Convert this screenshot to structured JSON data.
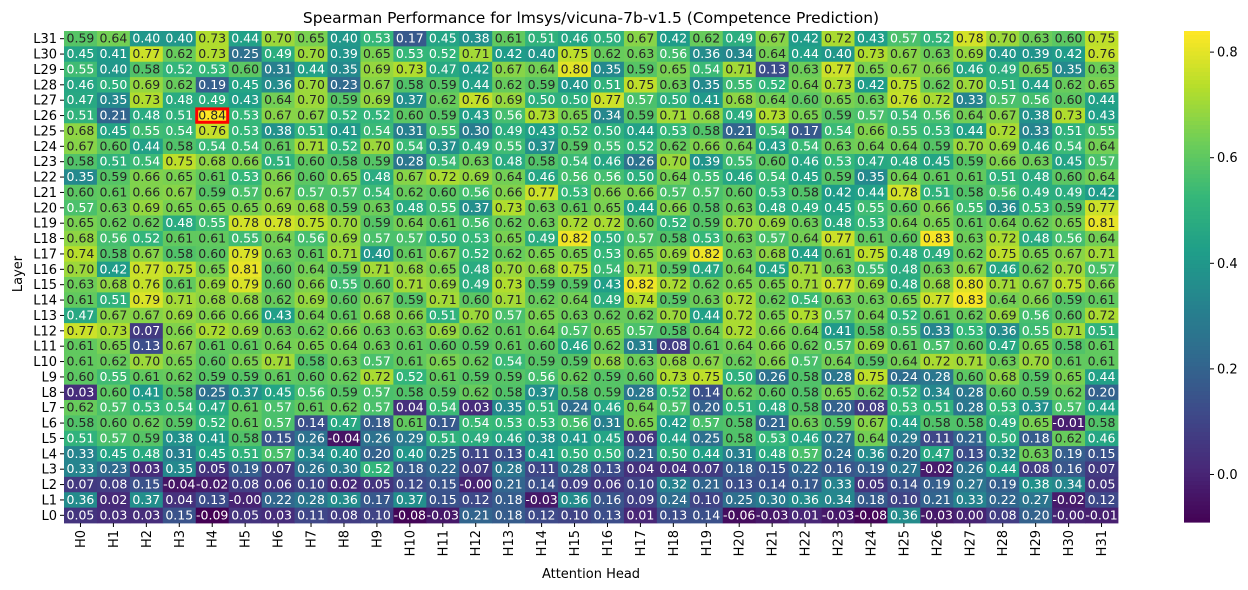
{
  "chart_data": {
    "type": "heatmap",
    "title": "Spearman Performance for lmsys/vicuna-7b-v1.5 (Competence Prediction)",
    "xlabel": "Attention Head",
    "ylabel": "Layer",
    "x_labels": [
      "H0",
      "H1",
      "H2",
      "H3",
      "H4",
      "H5",
      "H6",
      "H7",
      "H8",
      "H9",
      "H10",
      "H11",
      "H12",
      "H13",
      "H14",
      "H15",
      "H16",
      "H17",
      "H18",
      "H19",
      "H20",
      "H21",
      "H22",
      "H23",
      "H24",
      "H25",
      "H26",
      "H27",
      "H28",
      "H29",
      "H30",
      "H31"
    ],
    "y_labels": [
      "L31",
      "L30",
      "L29",
      "L28",
      "L27",
      "L26",
      "L25",
      "L24",
      "L23",
      "L22",
      "L21",
      "L20",
      "L19",
      "L18",
      "L17",
      "L16",
      "L15",
      "L14",
      "L13",
      "L12",
      "L11",
      "L10",
      "L9",
      "L8",
      "L7",
      "L6",
      "L5",
      "L4",
      "L3",
      "L2",
      "L1",
      "L0"
    ],
    "values": [
      [
        "0.59",
        "0.64",
        "0.40",
        "0.40",
        "0.73",
        "0.44",
        "0.70",
        "0.65",
        "0.40",
        "0.53",
        "0.17",
        "0.45",
        "0.38",
        "0.61",
        "0.51",
        "0.46",
        "0.50",
        "0.67",
        "0.42",
        "0.62",
        "0.49",
        "0.67",
        "0.42",
        "0.72",
        "0.43",
        "0.57",
        "0.52",
        "0.78",
        "0.70",
        "0.63",
        "0.60",
        "0.75"
      ],
      [
        "0.45",
        "0.41",
        "0.77",
        "0.62",
        "0.73",
        "0.25",
        "0.49",
        "0.70",
        "0.39",
        "0.65",
        "0.53",
        "0.52",
        "0.71",
        "0.42",
        "0.40",
        "0.75",
        "0.62",
        "0.63",
        "0.56",
        "0.36",
        "0.34",
        "0.64",
        "0.44",
        "0.40",
        "0.73",
        "0.67",
        "0.63",
        "0.69",
        "0.40",
        "0.39",
        "0.42",
        "0.76"
      ],
      [
        "0.55",
        "0.40",
        "0.58",
        "0.52",
        "0.53",
        "0.60",
        "0.31",
        "0.44",
        "0.35",
        "0.69",
        "0.73",
        "0.47",
        "0.42",
        "0.67",
        "0.64",
        "0.80",
        "0.35",
        "0.59",
        "0.65",
        "0.54",
        "0.71",
        "0.13",
        "0.63",
        "0.77",
        "0.65",
        "0.67",
        "0.66",
        "0.46",
        "0.49",
        "0.65",
        "0.35",
        "0.63"
      ],
      [
        "0.46",
        "0.50",
        "0.69",
        "0.62",
        "0.19",
        "0.45",
        "0.36",
        "0.70",
        "0.23",
        "0.67",
        "0.58",
        "0.59",
        "0.44",
        "0.62",
        "0.59",
        "0.40",
        "0.51",
        "0.75",
        "0.63",
        "0.35",
        "0.55",
        "0.52",
        "0.64",
        "0.73",
        "0.42",
        "0.75",
        "0.62",
        "0.70",
        "0.51",
        "0.44",
        "0.62",
        "0.65"
      ],
      [
        "0.47",
        "0.35",
        "0.73",
        "0.48",
        "0.49",
        "0.43",
        "0.64",
        "0.70",
        "0.59",
        "0.69",
        "0.37",
        "0.62",
        "0.76",
        "0.69",
        "0.50",
        "0.50",
        "0.77",
        "0.57",
        "0.50",
        "0.41",
        "0.68",
        "0.64",
        "0.60",
        "0.65",
        "0.63",
        "0.76",
        "0.72",
        "0.33",
        "0.57",
        "0.56",
        "0.60",
        "0.44"
      ],
      [
        "0.51",
        "0.21",
        "0.48",
        "0.51",
        "0.84",
        "0.53",
        "0.67",
        "0.67",
        "0.52",
        "0.52",
        "0.60",
        "0.59",
        "0.43",
        "0.56",
        "0.73",
        "0.65",
        "0.34",
        "0.59",
        "0.71",
        "0.68",
        "0.49",
        "0.73",
        "0.65",
        "0.59",
        "0.57",
        "0.54",
        "0.56",
        "0.64",
        "0.67",
        "0.38",
        "0.73",
        "0.43"
      ],
      [
        "0.68",
        "0.45",
        "0.55",
        "0.54",
        "0.76",
        "0.53",
        "0.38",
        "0.51",
        "0.41",
        "0.54",
        "0.31",
        "0.55",
        "0.30",
        "0.49",
        "0.43",
        "0.52",
        "0.50",
        "0.44",
        "0.53",
        "0.58",
        "0.21",
        "0.54",
        "0.17",
        "0.54",
        "0.66",
        "0.55",
        "0.53",
        "0.44",
        "0.72",
        "0.33",
        "0.51",
        "0.55"
      ],
      [
        "0.67",
        "0.60",
        "0.44",
        "0.58",
        "0.54",
        "0.54",
        "0.61",
        "0.71",
        "0.52",
        "0.70",
        "0.54",
        "0.37",
        "0.49",
        "0.55",
        "0.37",
        "0.59",
        "0.55",
        "0.52",
        "0.62",
        "0.66",
        "0.64",
        "0.43",
        "0.54",
        "0.63",
        "0.64",
        "0.64",
        "0.59",
        "0.70",
        "0.69",
        "0.46",
        "0.54",
        "0.64"
      ],
      [
        "0.58",
        "0.51",
        "0.54",
        "0.75",
        "0.68",
        "0.66",
        "0.51",
        "0.60",
        "0.58",
        "0.59",
        "0.28",
        "0.54",
        "0.63",
        "0.48",
        "0.58",
        "0.54",
        "0.46",
        "0.26",
        "0.70",
        "0.39",
        "0.55",
        "0.60",
        "0.46",
        "0.53",
        "0.47",
        "0.48",
        "0.45",
        "0.59",
        "0.66",
        "0.63",
        "0.45",
        "0.57"
      ],
      [
        "0.35",
        "0.59",
        "0.66",
        "0.65",
        "0.61",
        "0.53",
        "0.66",
        "0.60",
        "0.65",
        "0.48",
        "0.67",
        "0.72",
        "0.69",
        "0.64",
        "0.46",
        "0.56",
        "0.56",
        "0.50",
        "0.64",
        "0.55",
        "0.46",
        "0.54",
        "0.45",
        "0.59",
        "0.35",
        "0.64",
        "0.61",
        "0.61",
        "0.51",
        "0.48",
        "0.60",
        "0.64"
      ],
      [
        "0.60",
        "0.61",
        "0.66",
        "0.67",
        "0.59",
        "0.57",
        "0.67",
        "0.57",
        "0.57",
        "0.54",
        "0.62",
        "0.60",
        "0.56",
        "0.66",
        "0.77",
        "0.53",
        "0.66",
        "0.66",
        "0.57",
        "0.57",
        "0.60",
        "0.53",
        "0.58",
        "0.42",
        "0.44",
        "0.78",
        "0.51",
        "0.58",
        "0.56",
        "0.49",
        "0.49",
        "0.42"
      ],
      [
        "0.57",
        "0.63",
        "0.69",
        "0.65",
        "0.65",
        "0.65",
        "0.69",
        "0.68",
        "0.59",
        "0.63",
        "0.48",
        "0.55",
        "0.37",
        "0.73",
        "0.63",
        "0.61",
        "0.65",
        "0.44",
        "0.66",
        "0.58",
        "0.63",
        "0.48",
        "0.49",
        "0.45",
        "0.55",
        "0.60",
        "0.66",
        "0.55",
        "0.36",
        "0.53",
        "0.59",
        "0.77"
      ],
      [
        "0.65",
        "0.62",
        "0.62",
        "0.48",
        "0.55",
        "0.78",
        "0.78",
        "0.75",
        "0.70",
        "0.59",
        "0.64",
        "0.61",
        "0.56",
        "0.62",
        "0.63",
        "0.72",
        "0.72",
        "0.60",
        "0.52",
        "0.59",
        "0.70",
        "0.69",
        "0.63",
        "0.48",
        "0.53",
        "0.64",
        "0.65",
        "0.61",
        "0.64",
        "0.62",
        "0.65",
        "0.81"
      ],
      [
        "0.68",
        "0.56",
        "0.52",
        "0.61",
        "0.61",
        "0.55",
        "0.64",
        "0.56",
        "0.69",
        "0.57",
        "0.57",
        "0.50",
        "0.53",
        "0.65",
        "0.49",
        "0.82",
        "0.50",
        "0.57",
        "0.58",
        "0.53",
        "0.63",
        "0.57",
        "0.64",
        "0.77",
        "0.61",
        "0.60",
        "0.83",
        "0.63",
        "0.72",
        "0.48",
        "0.56",
        "0.64"
      ],
      [
        "0.74",
        "0.58",
        "0.67",
        "0.58",
        "0.60",
        "0.79",
        "0.63",
        "0.61",
        "0.71",
        "0.40",
        "0.61",
        "0.67",
        "0.52",
        "0.62",
        "0.65",
        "0.65",
        "0.53",
        "0.65",
        "0.69",
        "0.82",
        "0.63",
        "0.68",
        "0.44",
        "0.61",
        "0.75",
        "0.48",
        "0.49",
        "0.62",
        "0.75",
        "0.65",
        "0.67",
        "0.71"
      ],
      [
        "0.70",
        "0.42",
        "0.77",
        "0.75",
        "0.65",
        "0.81",
        "0.60",
        "0.64",
        "0.59",
        "0.71",
        "0.68",
        "0.65",
        "0.48",
        "0.70",
        "0.68",
        "0.75",
        "0.54",
        "0.71",
        "0.59",
        "0.47",
        "0.64",
        "0.45",
        "0.71",
        "0.63",
        "0.55",
        "0.48",
        "0.63",
        "0.67",
        "0.46",
        "0.62",
        "0.70",
        "0.57"
      ],
      [
        "0.63",
        "0.68",
        "0.76",
        "0.61",
        "0.69",
        "0.79",
        "0.60",
        "0.66",
        "0.55",
        "0.60",
        "0.71",
        "0.69",
        "0.49",
        "0.73",
        "0.59",
        "0.59",
        "0.43",
        "0.82",
        "0.72",
        "0.62",
        "0.65",
        "0.65",
        "0.71",
        "0.77",
        "0.69",
        "0.48",
        "0.68",
        "0.80",
        "0.71",
        "0.67",
        "0.75",
        "0.66"
      ],
      [
        "0.61",
        "0.51",
        "0.79",
        "0.71",
        "0.68",
        "0.68",
        "0.62",
        "0.69",
        "0.60",
        "0.67",
        "0.59",
        "0.71",
        "0.60",
        "0.71",
        "0.62",
        "0.64",
        "0.49",
        "0.74",
        "0.59",
        "0.63",
        "0.72",
        "0.62",
        "0.54",
        "0.63",
        "0.63",
        "0.65",
        "0.77",
        "0.83",
        "0.64",
        "0.66",
        "0.59",
        "0.61"
      ],
      [
        "0.47",
        "0.67",
        "0.67",
        "0.69",
        "0.66",
        "0.66",
        "0.43",
        "0.64",
        "0.61",
        "0.68",
        "0.66",
        "0.51",
        "0.70",
        "0.57",
        "0.65",
        "0.63",
        "0.62",
        "0.62",
        "0.70",
        "0.44",
        "0.72",
        "0.65",
        "0.73",
        "0.57",
        "0.64",
        "0.52",
        "0.61",
        "0.62",
        "0.69",
        "0.56",
        "0.60",
        "0.72"
      ],
      [
        "0.77",
        "0.73",
        "0.07",
        "0.66",
        "0.72",
        "0.69",
        "0.63",
        "0.62",
        "0.66",
        "0.63",
        "0.63",
        "0.69",
        "0.62",
        "0.61",
        "0.64",
        "0.57",
        "0.65",
        "0.57",
        "0.58",
        "0.64",
        "0.72",
        "0.66",
        "0.64",
        "0.41",
        "0.58",
        "0.55",
        "0.33",
        "0.53",
        "0.36",
        "0.55",
        "0.71",
        "0.51"
      ],
      [
        "0.61",
        "0.65",
        "0.13",
        "0.67",
        "0.61",
        "0.61",
        "0.64",
        "0.65",
        "0.64",
        "0.63",
        "0.61",
        "0.60",
        "0.59",
        "0.61",
        "0.60",
        "0.46",
        "0.62",
        "0.31",
        "0.08",
        "0.61",
        "0.64",
        "0.66",
        "0.62",
        "0.57",
        "0.69",
        "0.61",
        "0.57",
        "0.60",
        "0.47",
        "0.65",
        "0.58",
        "0.61"
      ],
      [
        "0.61",
        "0.62",
        "0.70",
        "0.65",
        "0.60",
        "0.65",
        "0.71",
        "0.58",
        "0.63",
        "0.57",
        "0.61",
        "0.65",
        "0.62",
        "0.54",
        "0.59",
        "0.59",
        "0.68",
        "0.63",
        "0.68",
        "0.67",
        "0.62",
        "0.66",
        "0.57",
        "0.64",
        "0.59",
        "0.64",
        "0.72",
        "0.71",
        "0.63",
        "0.70",
        "0.61",
        "0.61"
      ],
      [
        "0.60",
        "0.55",
        "0.61",
        "0.62",
        "0.59",
        "0.59",
        "0.61",
        "0.60",
        "0.62",
        "0.72",
        "0.52",
        "0.61",
        "0.59",
        "0.59",
        "0.56",
        "0.62",
        "0.59",
        "0.60",
        "0.73",
        "0.75",
        "0.50",
        "0.26",
        "0.58",
        "0.28",
        "0.75",
        "0.24",
        "0.28",
        "0.60",
        "0.68",
        "0.59",
        "0.65",
        "0.44"
      ],
      [
        "0.03",
        "0.60",
        "0.41",
        "0.58",
        "0.25",
        "0.37",
        "0.45",
        "0.56",
        "0.59",
        "0.57",
        "0.58",
        "0.59",
        "0.62",
        "0.58",
        "0.37",
        "0.58",
        "0.59",
        "0.28",
        "0.52",
        "0.14",
        "0.62",
        "0.60",
        "0.58",
        "0.65",
        "0.62",
        "0.52",
        "0.34",
        "0.28",
        "0.60",
        "0.59",
        "0.62",
        "0.20"
      ],
      [
        "0.62",
        "0.57",
        "0.53",
        "0.54",
        "0.47",
        "0.61",
        "0.57",
        "0.61",
        "0.62",
        "0.57",
        "0.04",
        "0.54",
        "0.03",
        "0.35",
        "0.51",
        "0.24",
        "0.46",
        "0.64",
        "0.57",
        "0.20",
        "0.51",
        "0.48",
        "0.58",
        "0.20",
        "0.08",
        "0.53",
        "0.51",
        "0.28",
        "0.53",
        "0.37",
        "0.57",
        "0.44"
      ],
      [
        "0.58",
        "0.60",
        "0.62",
        "0.59",
        "0.52",
        "0.61",
        "0.57",
        "0.14",
        "0.47",
        "0.18",
        "0.61",
        "0.17",
        "0.54",
        "0.53",
        "0.53",
        "0.56",
        "0.31",
        "0.65",
        "0.42",
        "0.57",
        "0.58",
        "0.21",
        "0.63",
        "0.59",
        "0.67",
        "0.44",
        "0.58",
        "0.58",
        "0.49",
        "0.65",
        "-0.01",
        "0.58"
      ],
      [
        "0.51",
        "0.57",
        "0.59",
        "0.38",
        "0.41",
        "0.58",
        "0.15",
        "0.26",
        "-0.04",
        "0.26",
        "0.29",
        "0.51",
        "0.49",
        "0.46",
        "0.38",
        "0.41",
        "0.45",
        "0.06",
        "0.44",
        "0.25",
        "0.58",
        "0.53",
        "0.46",
        "0.27",
        "0.64",
        "0.29",
        "0.11",
        "0.21",
        "0.50",
        "0.18",
        "0.62",
        "0.46"
      ],
      [
        "0.33",
        "0.45",
        "0.48",
        "0.31",
        "0.45",
        "0.51",
        "0.57",
        "0.34",
        "0.40",
        "0.20",
        "0.40",
        "0.25",
        "0.11",
        "0.13",
        "0.41",
        "0.50",
        "0.50",
        "0.21",
        "0.50",
        "0.44",
        "0.31",
        "0.48",
        "0.57",
        "0.24",
        "0.36",
        "0.20",
        "0.47",
        "0.13",
        "0.32",
        "0.63",
        "0.19",
        "0.15"
      ],
      [
        "0.33",
        "0.23",
        "0.03",
        "0.35",
        "0.05",
        "0.19",
        "0.07",
        "0.26",
        "0.30",
        "0.52",
        "0.18",
        "0.22",
        "0.07",
        "0.28",
        "0.11",
        "0.28",
        "0.13",
        "0.04",
        "0.04",
        "0.07",
        "0.18",
        "0.15",
        "0.22",
        "0.16",
        "0.19",
        "0.27",
        "-0.02",
        "0.26",
        "0.44",
        "0.08",
        "0.16",
        "0.07"
      ],
      [
        "0.07",
        "0.08",
        "0.15",
        "-0.04",
        "-0.02",
        "0.08",
        "0.06",
        "0.10",
        "0.02",
        "0.05",
        "0.12",
        "0.15",
        "-0.00",
        "0.21",
        "0.14",
        "0.09",
        "0.06",
        "0.10",
        "0.32",
        "0.21",
        "0.13",
        "0.14",
        "0.17",
        "0.33",
        "0.05",
        "0.14",
        "0.19",
        "0.27",
        "0.19",
        "0.38",
        "0.34",
        "0.05"
      ],
      [
        "0.36",
        "0.02",
        "0.37",
        "0.04",
        "0.13",
        "-0.00",
        "0.22",
        "0.28",
        "0.36",
        "0.17",
        "0.37",
        "0.15",
        "0.12",
        "0.18",
        "-0.03",
        "0.36",
        "0.16",
        "0.09",
        "0.24",
        "0.10",
        "0.25",
        "0.30",
        "0.36",
        "0.34",
        "0.18",
        "0.10",
        "0.21",
        "0.33",
        "0.22",
        "0.27",
        "-0.02",
        "0.12"
      ],
      [
        "0.05",
        "0.03",
        "0.03",
        "0.15",
        "-0.09",
        "0.05",
        "0.03",
        "0.11",
        "0.08",
        "0.10",
        "-0.08",
        "-0.03",
        "0.21",
        "0.18",
        "0.12",
        "0.10",
        "0.13",
        "0.01",
        "0.13",
        "0.14",
        "-0.06",
        "-0.03",
        "0.01",
        "-0.03",
        "-0.08",
        "0.36",
        "-0.03",
        "0.00",
        "0.08",
        "0.20",
        "-0.00",
        "-0.01"
      ]
    ],
    "highlight": {
      "layer": "L26",
      "head": "H4",
      "color": "#ff0000"
    },
    "colorbar": {
      "min": -0.09,
      "max": 0.84,
      "ticks": [
        "0.0",
        "0.2",
        "0.4",
        "0.6",
        "0.8"
      ]
    },
    "colormap": "viridis"
  }
}
